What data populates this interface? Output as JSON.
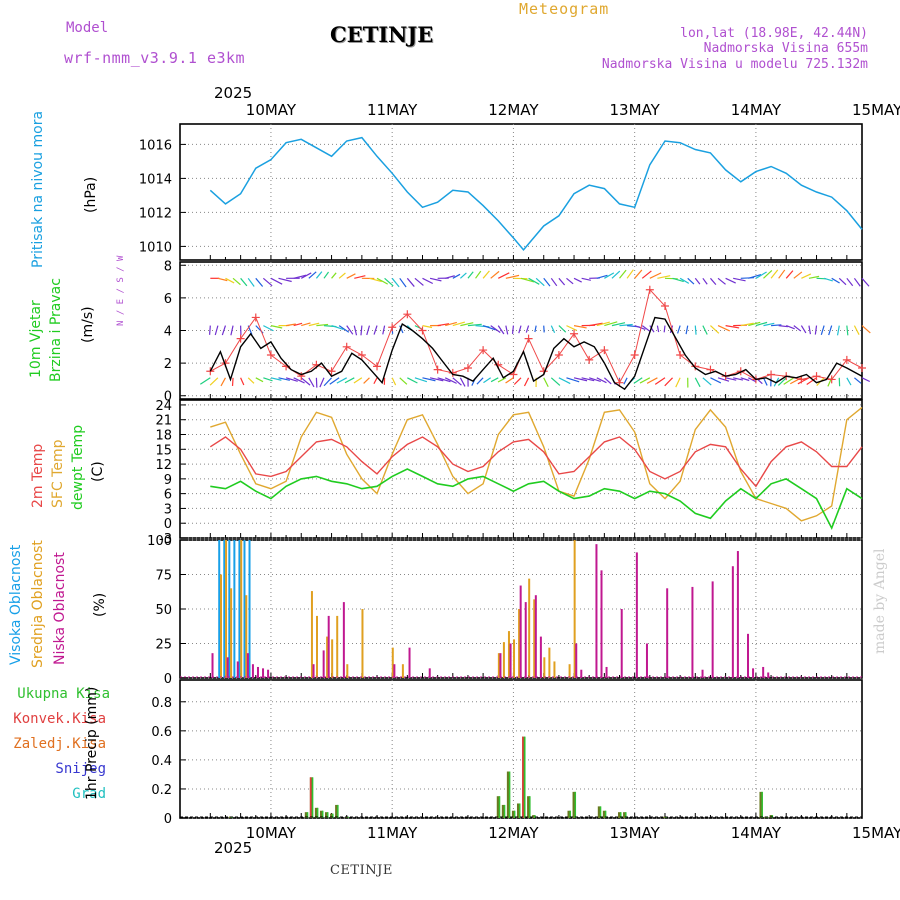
{
  "header": {
    "model_label": "Model",
    "model_name": "wrf-nmm_v3.9.1  e3km",
    "station": "CETINJE",
    "meteogram_label": "Meteogram",
    "lonlat": "lon,lat (18.98E, 42.44N)",
    "altitude": "Nadmorska Visina 655m",
    "model_altitude": "Nadmorska Visina u modelu 725.132m"
  },
  "footer": {
    "station": "CETINJE",
    "credit": "made by Angel"
  },
  "colors": {
    "pressure": "#1aa0e0",
    "temp2m": "#e84848",
    "sfctemp": "#e0a830",
    "dewpt": "#20cc20",
    "high": "#18a0e8",
    "mid": "#e0a020",
    "low": "#c01890",
    "total": "#30c030",
    "conv": "#e04040",
    "strat": "#e07020",
    "snow": "#3838d0",
    "hail": "#20c0c0",
    "model": "#b050d0"
  },
  "time_axis": {
    "year": "2025",
    "days": [
      "10MAY",
      "11MAY",
      "12MAY",
      "13MAY",
      "14MAY",
      "15MAY"
    ]
  },
  "chart_data": [
    {
      "type": "line",
      "title": "Pritisak na nivou mora",
      "ylabel": "(hPa)",
      "ylim": [
        1009.2,
        1017.2
      ],
      "yticks": [
        1010,
        1012,
        1014,
        1016
      ],
      "series": [
        {
          "name": "pressure",
          "x": [
            0,
            3,
            6,
            9,
            12,
            15,
            18,
            21,
            24,
            27,
            30,
            33,
            36,
            39,
            42,
            45,
            48,
            51,
            54,
            57,
            60,
            62,
            66,
            69,
            72,
            75,
            78,
            81,
            84,
            87,
            90,
            93,
            96,
            99,
            102,
            105,
            108,
            111,
            114,
            117,
            120,
            123,
            126,
            129
          ],
          "y": [
            1013.3,
            1012.5,
            1013.1,
            1014.6,
            1015.1,
            1016.1,
            1016.3,
            1015.8,
            1015.3,
            1016.2,
            1016.4,
            1015.3,
            1014.3,
            1013.2,
            1012.3,
            1012.6,
            1013.3,
            1013.2,
            1012.4,
            1011.5,
            1010.5,
            1009.8,
            1011.2,
            1011.8,
            1013.1,
            1013.6,
            1013.4,
            1012.5,
            1012.3,
            1014.8,
            1016.2,
            1016.1,
            1015.7,
            1015.5,
            1014.5,
            1013.8,
            1014.4,
            1014.7,
            1014.3,
            1013.6,
            1013.2,
            1012.9,
            1012.1,
            1011.0
          ]
        }
      ]
    },
    {
      "type": "line",
      "title": "10m Vjetar Brzina i Pravac",
      "ylabel": "(m/s)",
      "ylim": [
        -0.2,
        8.2
      ],
      "yticks": [
        0,
        2,
        4,
        6,
        8
      ],
      "compass": "N / E / S / W",
      "series": [
        {
          "name": "wind speed",
          "x": [
            0,
            2,
            4,
            6,
            8,
            10,
            12,
            14,
            16,
            18,
            20,
            22,
            24,
            26,
            28,
            30,
            32,
            34,
            36,
            38,
            40,
            42,
            44,
            46,
            48,
            50,
            52,
            54,
            56,
            58,
            60,
            62,
            64,
            66,
            68,
            70,
            72,
            74,
            76,
            78,
            80,
            82,
            84,
            86,
            88,
            90,
            92,
            94,
            96,
            98,
            100,
            102,
            104,
            106,
            108,
            110,
            112,
            114,
            116,
            118,
            120,
            122,
            124,
            126,
            129
          ],
          "y": [
            1.5,
            2.7,
            1.0,
            3.0,
            3.8,
            2.9,
            3.3,
            2.3,
            1.6,
            1.3,
            1.5,
            2.0,
            1.2,
            1.5,
            2.6,
            2.2,
            1.5,
            0.8,
            2.8,
            4.4,
            4.0,
            3.5,
            2.9,
            2.1,
            1.3,
            1.2,
            0.9,
            1.6,
            2.3,
            1.1,
            1.5,
            2.7,
            0.9,
            1.3,
            2.9,
            3.5,
            3.0,
            3.3,
            3.0,
            2.0,
            0.8,
            0.4,
            1.2,
            3.0,
            4.8,
            4.7,
            3.6,
            2.5,
            1.7,
            1.3,
            1.5,
            1.2,
            1.3,
            1.6,
            1.0,
            1.1,
            0.8,
            1.2,
            1.1,
            1.3,
            0.8,
            1.0,
            2.0,
            1.7,
            1.2
          ]
        },
        {
          "name": "gust",
          "x": [
            0,
            3,
            6,
            9,
            12,
            15,
            18,
            21,
            24,
            27,
            30,
            33,
            36,
            39,
            42,
            45,
            48,
            51,
            54,
            57,
            60,
            63,
            66,
            69,
            72,
            75,
            78,
            81,
            84,
            87,
            90,
            93,
            96,
            99,
            102,
            105,
            108,
            111,
            114,
            117,
            120,
            123,
            126,
            129
          ],
          "y": [
            1.5,
            2.0,
            3.5,
            4.8,
            2.5,
            1.8,
            1.2,
            1.9,
            1.5,
            3.0,
            2.5,
            1.8,
            4.2,
            5.0,
            4.0,
            1.6,
            1.4,
            1.7,
            2.8,
            1.9,
            1.3,
            3.5,
            1.5,
            2.5,
            3.8,
            2.2,
            2.8,
            0.8,
            2.5,
            6.5,
            5.5,
            2.5,
            1.8,
            1.6,
            1.2,
            1.5,
            1.0,
            1.3,
            1.2,
            1.0,
            1.2,
            1.0,
            2.2,
            1.7
          ]
        }
      ]
    },
    {
      "type": "line",
      "titles": [
        "2m Temp",
        "SFC Temp",
        "dewpt Temp"
      ],
      "ylabel": "(C)",
      "ylim": [
        -3,
        25
      ],
      "yticks": [
        -3,
        0,
        3,
        6,
        9,
        12,
        15,
        18,
        21,
        24
      ],
      "series": [
        {
          "name": "2m Temp",
          "x": [
            0,
            3,
            6,
            9,
            12,
            15,
            18,
            21,
            24,
            27,
            30,
            33,
            36,
            39,
            42,
            45,
            48,
            51,
            54,
            57,
            60,
            63,
            66,
            69,
            72,
            75,
            78,
            81,
            84,
            87,
            90,
            93,
            96,
            99,
            102,
            105,
            108,
            111,
            114,
            117,
            120,
            123,
            126,
            129
          ],
          "y": [
            15.5,
            17.5,
            15.0,
            10.0,
            9.5,
            10.5,
            13.5,
            16.5,
            17.0,
            15.5,
            12.5,
            10.0,
            13.5,
            16.0,
            17.5,
            15.5,
            12.0,
            10.5,
            11.5,
            14.5,
            16.5,
            17.0,
            14.5,
            10.0,
            10.5,
            13.5,
            16.5,
            17.5,
            15.0,
            10.5,
            9.0,
            10.5,
            14.5,
            16.0,
            15.5,
            11.0,
            7.5,
            12.5,
            15.5,
            16.5,
            14.5,
            11.5,
            11.5,
            15.5
          ]
        },
        {
          "name": "SFC Temp",
          "x": [
            0,
            3,
            6,
            9,
            12,
            15,
            18,
            21,
            24,
            27,
            30,
            33,
            36,
            39,
            42,
            45,
            48,
            51,
            54,
            57,
            60,
            63,
            66,
            69,
            72,
            75,
            78,
            81,
            84,
            87,
            90,
            93,
            96,
            99,
            102,
            105,
            108,
            111,
            114,
            117,
            120,
            123,
            126,
            129
          ],
          "y": [
            19.5,
            20.5,
            14.0,
            8.0,
            7.0,
            8.5,
            17.5,
            22.5,
            21.5,
            14.0,
            9.0,
            6.0,
            14.0,
            21.0,
            22.0,
            16.0,
            9.5,
            6.0,
            8.0,
            18.0,
            22.0,
            22.5,
            15.5,
            6.5,
            5.5,
            13.0,
            22.5,
            23.0,
            18.5,
            8.0,
            5.0,
            8.5,
            19.0,
            23.0,
            19.5,
            10.5,
            5.0,
            4.0,
            3.0,
            0.5,
            1.5,
            3.5,
            21.0,
            23.5
          ]
        },
        {
          "name": "dewpt Temp",
          "x": [
            0,
            3,
            6,
            9,
            12,
            15,
            18,
            21,
            24,
            27,
            30,
            33,
            36,
            39,
            42,
            45,
            48,
            51,
            54,
            57,
            60,
            63,
            66,
            69,
            72,
            75,
            78,
            81,
            84,
            87,
            90,
            93,
            96,
            99,
            102,
            105,
            108,
            111,
            114,
            117,
            120,
            123,
            126,
            129
          ],
          "y": [
            7.5,
            7.0,
            8.5,
            6.5,
            5.0,
            7.5,
            9.0,
            9.5,
            8.5,
            8.0,
            7.0,
            7.5,
            9.5,
            11.0,
            9.5,
            8.0,
            7.5,
            9.0,
            9.5,
            8.0,
            6.5,
            8.0,
            8.5,
            6.5,
            5.0,
            5.5,
            7.0,
            6.5,
            5.0,
            6.5,
            6.0,
            4.5,
            2.0,
            1.0,
            4.5,
            7.0,
            5.0,
            8.0,
            9.0,
            7.0,
            5.0,
            -1.0,
            7.0,
            5.0
          ]
        }
      ]
    },
    {
      "type": "bar",
      "titles": [
        "Visoka Oblacnost",
        "Srednja Oblacnost",
        "Niska Oblacnost"
      ],
      "ylabel": "(%)",
      "ylim": [
        0,
        100
      ],
      "yticks": [
        0,
        25,
        50,
        75,
        100
      ],
      "series": [
        {
          "name": "Visoka Oblacnost",
          "x": [
            2,
            3,
            4,
            5,
            6,
            7,
            8
          ],
          "values": [
            100,
            100,
            100,
            100,
            100,
            100,
            100
          ]
        },
        {
          "name": "Srednja Oblacnost",
          "x": [
            2,
            3,
            4,
            6,
            7,
            20,
            21,
            23,
            24,
            25,
            27,
            30,
            36,
            38,
            57,
            58,
            59,
            60,
            61,
            63,
            64,
            66,
            67,
            68,
            71,
            72
          ],
          "values": [
            75,
            100,
            65,
            100,
            60,
            63,
            45,
            30,
            28,
            45,
            10,
            50,
            22,
            10,
            18,
            26,
            34,
            28,
            50,
            72,
            57,
            15,
            22,
            12,
            10,
            100
          ]
        },
        {
          "name": "Niska Oblacnost",
          "x": [
            0,
            3,
            5,
            7,
            8,
            9,
            10,
            11,
            20,
            22,
            23,
            26,
            36,
            39,
            43,
            57,
            59,
            61,
            62,
            64,
            65,
            72,
            73,
            76,
            77,
            78,
            81,
            84,
            86,
            90,
            95,
            97,
            99,
            103,
            104,
            106,
            107,
            109,
            110
          ],
          "values": [
            18,
            15,
            12,
            18,
            10,
            8,
            7,
            6,
            10,
            20,
            45,
            55,
            10,
            22,
            7,
            18,
            25,
            67,
            55,
            60,
            30,
            25,
            6,
            97,
            78,
            8,
            50,
            91,
            25,
            65,
            66,
            6,
            70,
            81,
            92,
            32,
            7,
            8,
            4
          ]
        }
      ]
    },
    {
      "type": "bar",
      "titles": [
        "Ukupna Kisa",
        "Konvek.Kisa",
        "Zaledj.Kisa",
        "Snijeg",
        "Grad"
      ],
      "ylabel": "1hr Precip (mm)",
      "ylim": [
        0,
        0.95
      ],
      "yticks": [
        0,
        0.2,
        0.4,
        0.6,
        0.8
      ],
      "series": [
        {
          "name": "Ukupna Kisa",
          "x": [
            4,
            19,
            20,
            21,
            22,
            23,
            24,
            25,
            27,
            57,
            58,
            59,
            60,
            61,
            62,
            63,
            64,
            71,
            72,
            77,
            78,
            81,
            82,
            90,
            109,
            110,
            111
          ],
          "values": [
            0.01,
            0.04,
            0.28,
            0.07,
            0.05,
            0.04,
            0.03,
            0.09,
            0.01,
            0.15,
            0.09,
            0.32,
            0.05,
            0.1,
            0.56,
            0.15,
            0.02,
            0.05,
            0.18,
            0.08,
            0.05,
            0.04,
            0.04,
            0.01,
            0.18,
            0.01,
            0.02
          ]
        },
        {
          "name": "Konvek.Kisa",
          "x": [
            20,
            62
          ],
          "values": [
            0.28,
            0.56
          ]
        }
      ]
    }
  ]
}
